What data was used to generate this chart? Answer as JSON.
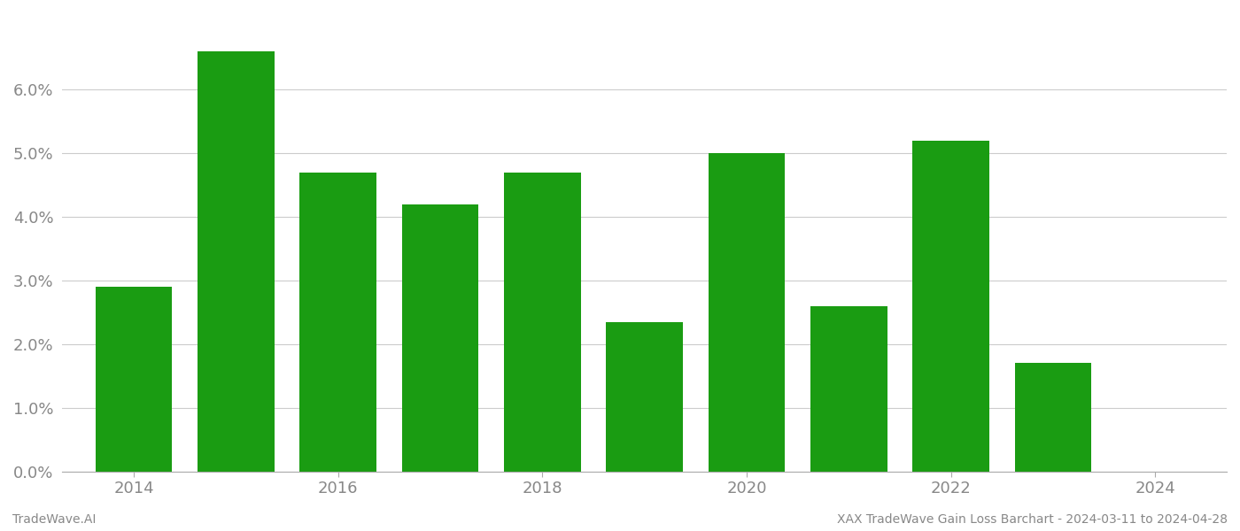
{
  "years": [
    2014,
    2015,
    2016,
    2017,
    2018,
    2019,
    2020,
    2021,
    2022,
    2023
  ],
  "values": [
    0.029,
    0.066,
    0.047,
    0.042,
    0.047,
    0.0235,
    0.05,
    0.026,
    0.052,
    0.017
  ],
  "bar_color": "#1a9c12",
  "background_color": "#ffffff",
  "grid_color": "#cccccc",
  "ylim": [
    0,
    0.072
  ],
  "yticks": [
    0.0,
    0.01,
    0.02,
    0.03,
    0.04,
    0.05,
    0.06
  ],
  "xticks": [
    2014,
    2016,
    2018,
    2020,
    2022,
    2024
  ],
  "xtick_labels": [
    "2014",
    "2016",
    "2018",
    "2020",
    "2022",
    "2024"
  ],
  "xlabel_fontsize": 13,
  "ylabel_fontsize": 13,
  "tick_color": "#888888",
  "footer_left": "TradeWave.AI",
  "footer_right": "XAX TradeWave Gain Loss Barchart - 2024-03-11 to 2024-04-28",
  "footer_fontsize": 10,
  "bar_width": 0.75,
  "spine_color": "#aaaaaa",
  "xlim": [
    2013.3,
    2024.7
  ]
}
